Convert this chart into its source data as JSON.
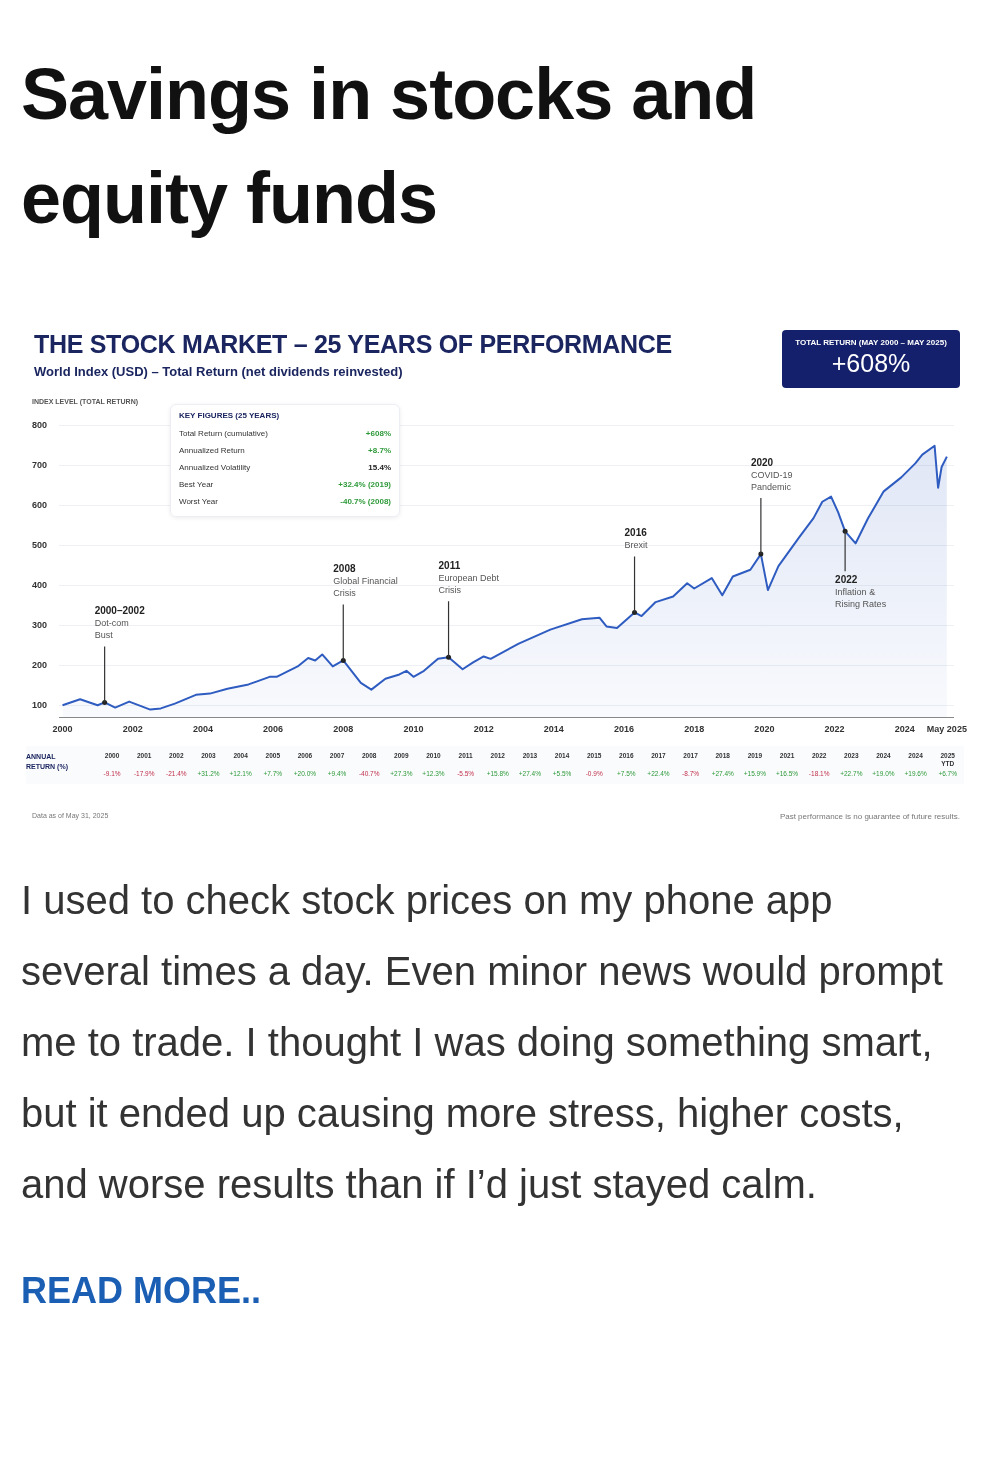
{
  "chart_data": {
    "type": "area",
    "title": "THE STOCK MARKET – 25 YEARS OF PERFORMANCE",
    "subtitle": "World Index (USD) – Total Return (net dividends reinvested)",
    "ylabel": "INDEX LEVEL (TOTAL RETURN)",
    "x": [
      2000.0,
      2000.5,
      2001.0,
      2001.2,
      2001.5,
      2001.9,
      2002.5,
      2002.8,
      2003.2,
      2003.8,
      2004.2,
      2004.7,
      2005.3,
      2005.9,
      2006.1,
      2006.7,
      2007.0,
      2007.2,
      2007.4,
      2007.7,
      2008.0,
      2008.5,
      2008.8,
      2009.2,
      2009.6,
      2009.8,
      2010.0,
      2010.3,
      2010.7,
      2011.0,
      2011.4,
      2011.7,
      2012.0,
      2012.2,
      2013.0,
      2013.9,
      2014.8,
      2015.3,
      2015.5,
      2015.8,
      2016.3,
      2016.5,
      2016.9,
      2017.4,
      2017.8,
      2018.0,
      2018.5,
      2018.8,
      2019.1,
      2019.6,
      2019.9,
      2020.1,
      2020.4,
      2021.0,
      2021.4,
      2021.65,
      2021.9,
      2022.1,
      2022.3,
      2022.6,
      2022.95,
      2023.4,
      2023.9,
      2024.3,
      2024.5,
      2024.85,
      2024.95,
      2025.05,
      2025.2
    ],
    "series": [
      {
        "color": "#2f5cc0",
        "values": [
          100,
          115,
          100,
          107,
          94,
          109,
          89,
          92,
          104,
          126,
          129,
          141,
          152,
          171,
          171,
          197,
          218,
          212,
          227,
          197,
          212,
          156,
          139,
          166,
          177,
          186,
          171,
          186,
          216,
          220,
          190,
          207,
          222,
          216,
          254,
          289,
          315,
          319,
          297,
          293,
          332,
          323,
          358,
          372,
          405,
          392,
          418,
          375,
          422,
          439,
          478,
          388,
          448,
          521,
          568,
          609,
          622,
          583,
          535,
          505,
          567,
          635,
          670,
          705,
          727,
          749,
          644,
          696,
          722
        ]
      }
    ],
    "xlim": [
      1999.9,
      2025.4
    ],
    "xticks": [
      2000,
      2002,
      2004,
      2006,
      2008,
      2010,
      2012,
      2014,
      2016,
      2018,
      2020,
      2022,
      2024,
      {
        "value": 2025.2,
        "label": "May 2025"
      }
    ],
    "ylim": [
      70,
      800
    ],
    "yticks": [
      100,
      200,
      300,
      400,
      500,
      600,
      700,
      800
    ],
    "grid": "y",
    "annotations": [
      "Savings in stocks and equity funds",
      "TOTAL RETURN (MAY 2000 – MAY 2025)",
      "+608%",
      "KEY FIGURES (25 YEARS)",
      "Total Return (cumulative)",
      "+608%",
      "Annualized Return",
      "+8.7%",
      "Annualized Volatility",
      "15.4%",
      "Best Year",
      "+32.4% (2019)",
      "Worst Year",
      "-40.7% (2008)",
      "ANNUAL\nRETURN (%)",
      "2000\n-9.1%",
      "2001\n-17.9%",
      "2002\n-21.4%",
      "2003\n+31.2%",
      "2004\n+12.1%",
      "2005\n+7.7%",
      "2006\n+20.0%",
      "2007\n+9.4%",
      "2008\n-40.7%",
      "2009\n+27.3%",
      "2010\n+12.3%",
      "2011\n-5.5%",
      "2012\n+15.8%",
      "2013\n+27.4%",
      "2014\n+5.5%",
      "2015\n-0.9%",
      "2016\n+7.5%",
      "2017\n+22.4%",
      "2017\n-8.7%",
      "2018\n+27.4%",
      "2019\n+15.9%",
      "2021\n+16.5%",
      "2022\n-18.1%",
      "2023\n+22.7%",
      "2024\n+19.0%",
      "2024\n+19.6%",
      "2025\nYTD\n+6.7%",
      "Data as of May 31, 2025",
      "Past performance is no guarantee of future results.",
      "I used to check stock prices on my phone app several times a day. Even minor news would prompt me to trade. I thought I was doing something smart, but it ended up causing more stress, higher costs, and worse results than if I’d just stayed calm.",
      "READ MORE..",
      {
        "text": "2000–2002\nDot-com\nBust",
        "x": 2001.2,
        "y": 107
      },
      {
        "text": "2008\nGlobal Financial\nCrisis",
        "x": 2008.0,
        "y": 212
      },
      {
        "text": "2011\nEuropean Debt\nCrisis",
        "x": 2011.0,
        "y": 220
      },
      {
        "text": "2016\nBrexit",
        "x": 2016.3,
        "y": 332
      },
      {
        "text": "2020\nCOVID-19\nPandemic",
        "x": 2019.9,
        "y": 478
      },
      {
        "text": "2022\nInflation &\nRising Rates",
        "x": 2022.3,
        "y": 535
      }
    ]
  }
}
